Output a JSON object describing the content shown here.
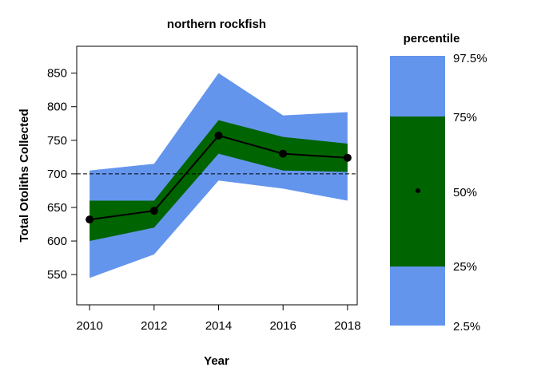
{
  "chart_data": {
    "type": "line",
    "title": "northern rockfish",
    "xlabel": "Year",
    "ylabel": "Total Otoliths Collected",
    "x": [
      2010,
      2012,
      2014,
      2016,
      2018
    ],
    "xticks": [
      2010,
      2012,
      2014,
      2016,
      2018
    ],
    "yticks": [
      550,
      600,
      650,
      700,
      750,
      800,
      850
    ],
    "xlim": [
      2009.6,
      2018.3
    ],
    "ylim": [
      505,
      890
    ],
    "median": [
      632,
      645,
      757,
      730,
      724
    ],
    "p2_5": [
      545,
      580,
      690,
      678,
      660
    ],
    "p25": [
      600,
      620,
      730,
      705,
      703
    ],
    "p75": [
      660,
      660,
      780,
      755,
      745
    ],
    "p97_5": [
      705,
      715,
      850,
      787,
      792
    ],
    "reference_line": 700,
    "colors": {
      "outer_band": "#6495ED",
      "inner_band": "#006400",
      "median_line": "#000000",
      "reference_line": "#000000"
    },
    "legend": {
      "title": "percentile",
      "labels": [
        "97.5%",
        "75%",
        "50%",
        "25%",
        "2.5%"
      ],
      "placement": "right"
    }
  }
}
